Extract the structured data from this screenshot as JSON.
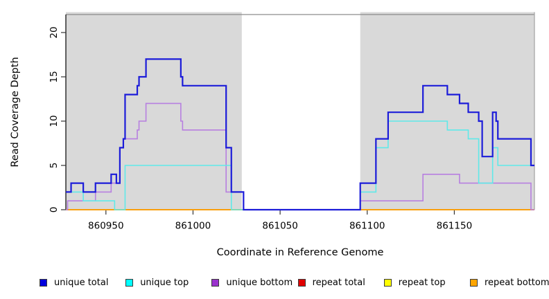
{
  "axes": {
    "x_label": "Coordinate in Reference Genome",
    "y_label": "Read Coverage Depth"
  },
  "chart_data": {
    "type": "line",
    "subtype": "step-after-coverage",
    "title": "",
    "xlabel": "Coordinate in Reference Genome",
    "ylabel": "Read Coverage Depth",
    "xlim": [
      860927,
      861196
    ],
    "ylim": [
      0,
      22
    ],
    "x_ticks": [
      860950,
      861000,
      861050,
      861100,
      861150
    ],
    "y_ticks": [
      0,
      5,
      10,
      15,
      20
    ],
    "grid": false,
    "legend_position": "bottom",
    "plot_background": "#ffffff",
    "shade_color": "#d9d9d9",
    "box_color": "#8c8c8c",
    "axis_color": "#000000",
    "shaded_regions": [
      [
        860927,
        861028
      ],
      [
        861096,
        861196
      ]
    ],
    "series": [
      {
        "name": "repeat total",
        "color": "#e00000",
        "width": 1.2,
        "points": [
          [
            860927,
            0
          ],
          [
            861196,
            0
          ]
        ]
      },
      {
        "name": "repeat top",
        "color": "#ffff00",
        "width": 1.2,
        "points": [
          [
            860927,
            0
          ],
          [
            861196,
            0
          ]
        ]
      },
      {
        "name": "repeat bottom",
        "color": "#ff9f00",
        "width": 1.8,
        "points": [
          [
            860927,
            0
          ],
          [
            861196,
            0
          ]
        ]
      },
      {
        "name": "unique bottom",
        "color": "#b77fe0",
        "width": 1.6,
        "points": [
          [
            860927,
            0
          ],
          [
            860928,
            1
          ],
          [
            860944,
            2
          ],
          [
            860953,
            3
          ],
          [
            860958,
            7
          ],
          [
            860960,
            8
          ],
          [
            860968,
            9
          ],
          [
            860969,
            10
          ],
          [
            860973,
            12
          ],
          [
            860993,
            10
          ],
          [
            860994,
            9
          ],
          [
            861019,
            2
          ],
          [
            861029,
            0
          ],
          [
            861096,
            1
          ],
          [
            861132,
            4
          ],
          [
            861153,
            3
          ],
          [
            861194,
            0
          ],
          [
            861196,
            0
          ]
        ]
      },
      {
        "name": "unique top",
        "color": "#5fe9e9",
        "width": 1.6,
        "points": [
          [
            860927,
            2
          ],
          [
            860937,
            1
          ],
          [
            860955,
            0
          ],
          [
            860961,
            5
          ],
          [
            861022,
            0
          ],
          [
            861096,
            2
          ],
          [
            861105,
            7
          ],
          [
            861112,
            10
          ],
          [
            861146,
            9
          ],
          [
            861158,
            8
          ],
          [
            861164,
            3
          ],
          [
            861172,
            7
          ],
          [
            861175,
            5
          ],
          [
            861196,
            5
          ]
        ]
      },
      {
        "name": "unique total",
        "color": "#1c1cd9",
        "width": 2.2,
        "points": [
          [
            860927,
            2
          ],
          [
            860930,
            3
          ],
          [
            860937,
            2
          ],
          [
            860944,
            3
          ],
          [
            860953,
            4
          ],
          [
            860956,
            3
          ],
          [
            860958,
            7
          ],
          [
            860960,
            8
          ],
          [
            860961,
            13
          ],
          [
            860968,
            14
          ],
          [
            860969,
            15
          ],
          [
            860973,
            17
          ],
          [
            860993,
            15
          ],
          [
            860994,
            14
          ],
          [
            861019,
            7
          ],
          [
            861022,
            2
          ],
          [
            861029,
            0
          ],
          [
            861096,
            3
          ],
          [
            861105,
            8
          ],
          [
            861112,
            11
          ],
          [
            861132,
            14
          ],
          [
            861146,
            13
          ],
          [
            861153,
            12
          ],
          [
            861158,
            11
          ],
          [
            861164,
            10
          ],
          [
            861166,
            6
          ],
          [
            861172,
            11
          ],
          [
            861174,
            10
          ],
          [
            861175,
            8
          ],
          [
            861194,
            5
          ],
          [
            861196,
            5
          ]
        ]
      }
    ]
  },
  "legend": {
    "items": [
      {
        "label": "unique total",
        "color": "#0000dd"
      },
      {
        "label": "unique top",
        "color": "#00ffff"
      },
      {
        "label": "unique bottom",
        "color": "#9a32cd"
      },
      {
        "label": "repeat total",
        "color": "#e00000"
      },
      {
        "label": "repeat top",
        "color": "#ffff00"
      },
      {
        "label": "repeat bottom",
        "color": "#ffa500"
      }
    ]
  }
}
